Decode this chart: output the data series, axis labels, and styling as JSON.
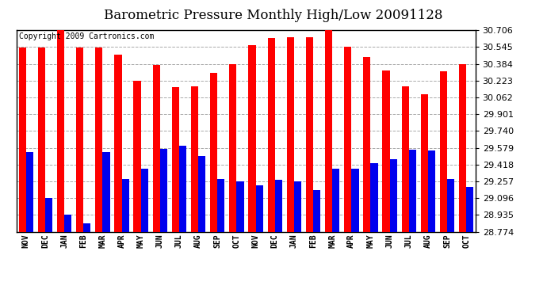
{
  "title": "Barometric Pressure Monthly High/Low 20091128",
  "copyright": "Copyright 2009 Cartronics.com",
  "months": [
    "NOV",
    "DEC",
    "JAN",
    "FEB",
    "MAR",
    "APR",
    "MAY",
    "JUN",
    "JUL",
    "AUG",
    "SEP",
    "OCT",
    "NOV",
    "DEC",
    "JAN",
    "FEB",
    "MAR",
    "APR",
    "MAY",
    "JUN",
    "JUL",
    "AUG",
    "SEP",
    "OCT"
  ],
  "highs": [
    30.54,
    30.54,
    30.706,
    30.54,
    30.54,
    30.47,
    30.22,
    30.37,
    30.16,
    30.17,
    30.3,
    30.38,
    30.56,
    30.63,
    30.64,
    30.64,
    30.706,
    30.55,
    30.45,
    30.32,
    30.17,
    30.09,
    30.31,
    30.38
  ],
  "lows": [
    29.54,
    29.1,
    28.94,
    28.85,
    29.54,
    29.28,
    29.38,
    29.57,
    29.6,
    29.5,
    29.28,
    29.26,
    29.22,
    29.27,
    29.26,
    29.17,
    29.38,
    29.38,
    29.43,
    29.47,
    29.56,
    29.55,
    29.28,
    29.2
  ],
  "high_color": "#ff0000",
  "low_color": "#0000ee",
  "bg_color": "#ffffff",
  "grid_color": "#aaaaaa",
  "ymin": 28.774,
  "ymax": 30.706,
  "ytick_values": [
    28.774,
    28.935,
    29.096,
    29.257,
    29.418,
    29.579,
    29.74,
    29.901,
    30.062,
    30.223,
    30.384,
    30.545,
    30.706
  ],
  "title_fontsize": 12,
  "copyright_fontsize": 7,
  "xtick_fontsize": 7,
  "ytick_fontsize": 8,
  "bar_width": 0.38
}
